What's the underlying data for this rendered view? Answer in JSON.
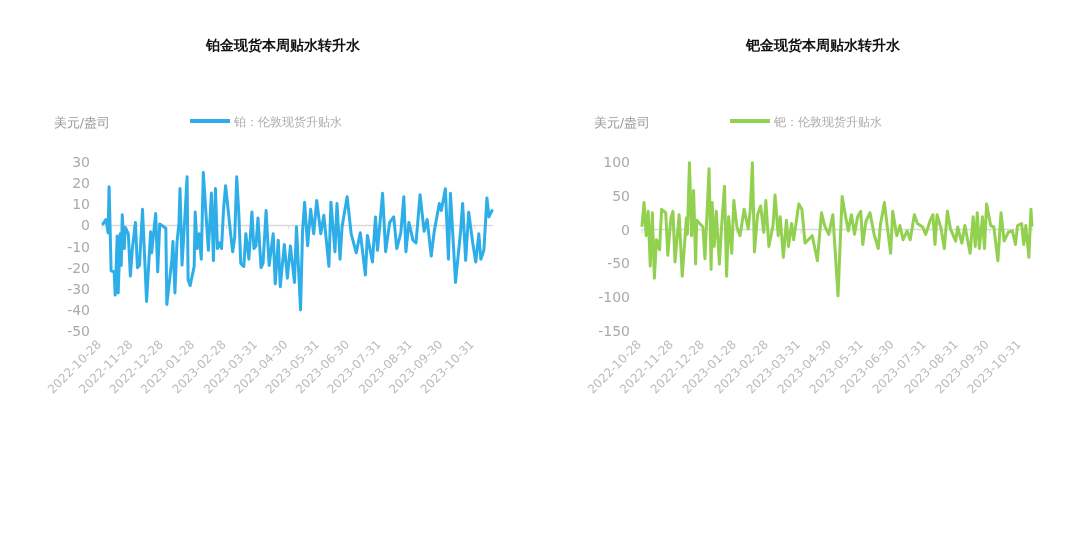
{
  "chart_data": [
    {
      "type": "line",
      "title": "铂金现货本周贴水转升水",
      "ylabel": "美元/盎司",
      "legend": "top",
      "line_style": "solid",
      "marker": "none",
      "xlim": [
        "2022-10-28",
        "2023-11-18"
      ],
      "ylim": [
        -50,
        30
      ],
      "yticks": [
        -50,
        -40,
        -30,
        -20,
        -10,
        0,
        10,
        20,
        30
      ],
      "xticks": [
        "2022-10-28",
        "2022-11-28",
        "2022-12-28",
        "2023-01-28",
        "2023-02-28",
        "2023-03-31",
        "2023-04-30",
        "2023-05-31",
        "2023-06-30",
        "2023-07-31",
        "2023-08-31",
        "2023-09-30",
        "2023-10-31"
      ],
      "x": [
        "2022-10-29",
        "2022-11-01",
        "2022-11-03",
        "2022-11-04",
        "2022-11-06",
        "2022-11-09",
        "2022-11-10",
        "2022-11-12",
        "2022-11-13",
        "2022-11-15",
        "2022-11-16",
        "2022-11-17",
        "2022-11-19",
        "2022-11-20",
        "2022-11-23",
        "2022-11-25",
        "2022-11-27",
        "2022-11-30",
        "2022-12-02",
        "2022-12-04",
        "2022-12-07",
        "2022-12-11",
        "2022-12-15",
        "2022-12-16",
        "2022-12-20",
        "2022-12-22",
        "2022-12-24",
        "2022-12-30",
        "2022-12-31",
        "2023-01-05",
        "2023-01-06",
        "2023-01-08",
        "2023-01-10",
        "2023-01-12",
        "2023-01-13",
        "2023-01-15",
        "2023-01-18",
        "2023-01-20",
        "2023-01-21",
        "2023-01-23",
        "2023-01-27",
        "2023-01-28",
        "2023-01-30",
        "2023-02-01",
        "2023-02-03",
        "2023-02-05",
        "2023-02-10",
        "2023-02-13",
        "2023-02-15",
        "2023-02-17",
        "2023-02-19",
        "2023-02-21",
        "2023-02-23",
        "2023-02-25",
        "2023-02-27",
        "2023-03-04",
        "2023-03-06",
        "2023-03-08",
        "2023-03-10",
        "2023-03-12",
        "2023-03-14",
        "2023-03-17",
        "2023-03-19",
        "2023-03-22",
        "2023-03-25",
        "2023-03-27",
        "2023-03-29",
        "2023-03-31",
        "2023-04-03",
        "2023-04-05",
        "2023-04-08",
        "2023-04-11",
        "2023-04-15",
        "2023-04-17",
        "2023-04-20",
        "2023-04-22",
        "2023-04-26",
        "2023-04-29",
        "2023-05-02",
        "2023-05-06",
        "2023-05-08",
        "2023-05-12",
        "2023-05-14",
        "2023-05-16",
        "2023-05-19",
        "2023-05-22",
        "2023-05-25",
        "2023-05-28",
        "2023-06-01",
        "2023-06-04",
        "2023-06-09",
        "2023-06-11",
        "2023-06-15",
        "2023-06-17",
        "2023-06-20",
        "2023-06-22",
        "2023-06-27",
        "2023-07-01",
        "2023-07-06",
        "2023-07-10",
        "2023-07-15",
        "2023-07-17",
        "2023-07-22",
        "2023-07-25",
        "2023-07-27",
        "2023-08-01",
        "2023-08-04",
        "2023-08-08",
        "2023-08-12",
        "2023-08-15",
        "2023-08-19",
        "2023-08-22",
        "2023-08-24",
        "2023-08-27",
        "2023-08-31",
        "2023-09-03",
        "2023-09-07",
        "2023-09-11",
        "2023-09-14",
        "2023-09-18",
        "2023-09-21",
        "2023-09-26",
        "2023-09-28",
        "2023-10-02",
        "2023-10-05",
        "2023-10-07",
        "2023-10-12",
        "2023-10-17",
        "2023-10-19",
        "2023-10-22",
        "2023-10-25",
        "2023-10-29",
        "2023-11-01",
        "2023-11-04",
        "2023-11-06",
        "2023-11-09",
        "2023-11-12",
        "2023-11-14",
        "2023-11-17"
      ],
      "series": [
        {
          "name": "铂：伦敦现货升贴水",
          "color": "#2eaee8",
          "values": [
            0.7,
            2.8,
            -3.5,
            18.3,
            -21.5,
            -22,
            -33,
            -5,
            -32,
            -4,
            -19,
            5,
            -11,
            -1,
            -4,
            -24,
            -11,
            1.4,
            -20,
            -19,
            7.6,
            -36,
            -3,
            -13,
            5.6,
            -22,
            0.7,
            -1.4,
            -37.5,
            -16,
            -7.6,
            -32,
            -8.3,
            1.4,
            17.4,
            -18.8,
            5.6,
            23,
            -25.7,
            -28.5,
            -19.4,
            6.3,
            -11,
            -4,
            -16,
            25,
            -11.8,
            15.3,
            -16.7,
            17.4,
            -11,
            -8.3,
            -11,
            7.6,
            18.8,
            -4,
            -12.5,
            -5.6,
            23,
            6.3,
            -18,
            -19.4,
            -4,
            -16,
            6.3,
            -11,
            -9.7,
            3.5,
            -20,
            -18,
            7,
            -19,
            -4,
            -27.7,
            -7,
            -29,
            -9,
            -25,
            -9.7,
            -27,
            -0.7,
            -40,
            -2.8,
            11,
            -9.7,
            7.6,
            -4,
            11.8,
            -4,
            4.8,
            -19.4,
            11,
            -12.5,
            10.4,
            -16,
            -0.7,
            13.6,
            -4,
            -13,
            -3.5,
            -23.5,
            -4.8,
            -17.3,
            4,
            -11.8,
            15.2,
            -12.5,
            1.4,
            4,
            -11,
            -3.5,
            13.6,
            -12.5,
            1.4,
            -7,
            -8.3,
            14.5,
            -2.8,
            2.8,
            -14.5,
            -2.8,
            10.4,
            7,
            17.3,
            -16,
            15.2,
            -27,
            -2.8,
            10.4,
            -16.6,
            6.2,
            -8.3,
            -17.3,
            -4,
            -16,
            -11.8,
            13,
            4,
            7
          ]
        }
      ]
    },
    {
      "type": "line",
      "title": "钯金现货本周贴水转升水",
      "ylabel": "美元/盎司",
      "legend": "top",
      "line_style": "solid",
      "marker": "none",
      "xlim": [
        "2022-10-28",
        "2023-11-11"
      ],
      "ylim": [
        -150,
        100
      ],
      "yticks": [
        -150,
        -100,
        -50,
        0,
        50,
        100
      ],
      "xticks": [
        "2022-10-28",
        "2022-11-28",
        "2022-12-28",
        "2023-01-28",
        "2023-02-28",
        "2023-03-31",
        "2023-04-30",
        "2023-05-31",
        "2023-06-30",
        "2023-07-31",
        "2023-08-31",
        "2023-09-30",
        "2023-10-31"
      ],
      "x": [
        "2022-10-28",
        "2022-10-30",
        "2022-11-01",
        "2022-11-03",
        "2022-11-05",
        "2022-11-07",
        "2022-11-09",
        "2022-11-11",
        "2022-11-14",
        "2022-11-16",
        "2022-11-20",
        "2022-11-22",
        "2022-11-25",
        "2022-11-27",
        "2022-11-29",
        "2022-12-03",
        "2022-12-06",
        "2022-12-10",
        "2022-12-11",
        "2022-12-13",
        "2022-12-15",
        "2022-12-17",
        "2022-12-19",
        "2022-12-20",
        "2022-12-26",
        "2022-12-28",
        "2023-01-01",
        "2023-01-03",
        "2023-01-04",
        "2023-01-06",
        "2023-01-08",
        "2023-01-11",
        "2023-01-13",
        "2023-01-16",
        "2023-01-18",
        "2023-01-20",
        "2023-01-23",
        "2023-01-25",
        "2023-01-28",
        "2023-01-31",
        "2023-02-04",
        "2023-02-08",
        "2023-02-10",
        "2023-02-12",
        "2023-02-14",
        "2023-02-17",
        "2023-02-20",
        "2023-02-23",
        "2023-02-25",
        "2023-02-28",
        "2023-03-04",
        "2023-03-06",
        "2023-03-09",
        "2023-03-11",
        "2023-03-14",
        "2023-03-17",
        "2023-03-19",
        "2023-03-22",
        "2023-03-24",
        "2023-03-29",
        "2023-04-01",
        "2023-04-04",
        "2023-04-11",
        "2023-04-16",
        "2023-04-20",
        "2023-04-23",
        "2023-04-27",
        "2023-05-01",
        "2023-05-06",
        "2023-05-10",
        "2023-05-13",
        "2023-05-16",
        "2023-05-19",
        "2023-05-22",
        "2023-05-25",
        "2023-05-28",
        "2023-05-30",
        "2023-06-02",
        "2023-06-06",
        "2023-06-10",
        "2023-06-14",
        "2023-06-16",
        "2023-06-20",
        "2023-06-23",
        "2023-06-26",
        "2023-06-28",
        "2023-07-02",
        "2023-07-05",
        "2023-07-08",
        "2023-07-12",
        "2023-07-15",
        "2023-07-19",
        "2023-07-22",
        "2023-07-27",
        "2023-07-30",
        "2023-08-03",
        "2023-08-06",
        "2023-08-08",
        "2023-08-10",
        "2023-08-14",
        "2023-08-17",
        "2023-08-20",
        "2023-08-23",
        "2023-08-28",
        "2023-08-30",
        "2023-09-03",
        "2023-09-06",
        "2023-09-11",
        "2023-09-14",
        "2023-09-16",
        "2023-09-18",
        "2023-09-20",
        "2023-09-23",
        "2023-09-25",
        "2023-09-27",
        "2023-10-01",
        "2023-10-04",
        "2023-10-08",
        "2023-10-11",
        "2023-10-14",
        "2023-10-18",
        "2023-10-22",
        "2023-10-25",
        "2023-10-27",
        "2023-10-31",
        "2023-11-02",
        "2023-11-04",
        "2023-11-07",
        "2023-11-09",
        "2023-11-10"
      ],
      "series": [
        {
          "name": "钯：伦敦现货升贴水",
          "color": "#92d050",
          "values": [
            6,
            40,
            -9,
            27,
            -54,
            25,
            -72,
            -15,
            -30,
            30,
            25,
            -38,
            17,
            27,
            -48,
            22,
            -69,
            17,
            -7,
            99,
            -9,
            58,
            -51,
            14,
            4,
            -43,
            90,
            -59,
            40,
            -25,
            27,
            -51,
            1,
            64,
            -69,
            19,
            -35,
            43,
            4,
            -9,
            30,
            1,
            30,
            99,
            -33,
            22,
            35,
            -4,
            43,
            -25,
            6,
            51,
            -9,
            19,
            -41,
            14,
            -25,
            9,
            -15,
            38,
            30,
            -20,
            -9,
            -46,
            25,
            6,
            -7,
            22,
            -98,
            49,
            22,
            -2,
            22,
            -7,
            19,
            27,
            -22,
            12,
            25,
            -7,
            -28,
            6,
            40,
            1,
            -35,
            27,
            -9,
            6,
            -15,
            -2,
            -15,
            22,
            9,
            4,
            -7,
            12,
            22,
            -22,
            22,
            1,
            -28,
            27,
            1,
            -17,
            4,
            -20,
            6,
            -35,
            19,
            -25,
            25,
            -28,
            19,
            -28,
            38,
            6,
            4,
            -46,
            25,
            -17,
            -4,
            -2,
            -22,
            6,
            9,
            -22,
            6,
            -41,
            30,
            6
          ]
        }
      ]
    }
  ]
}
